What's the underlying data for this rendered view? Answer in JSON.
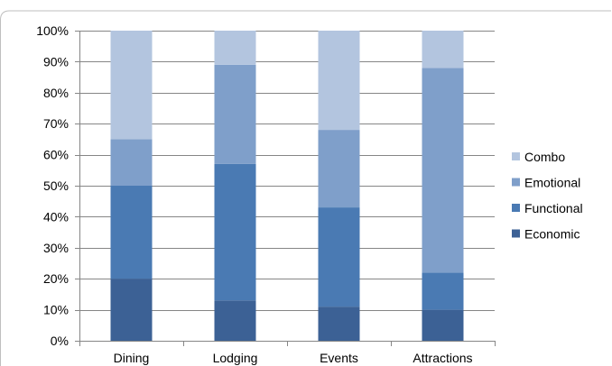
{
  "chart_data": {
    "type": "bar",
    "stacked": true,
    "categories": [
      "Dining",
      "Lodging",
      "Events",
      "Attractions"
    ],
    "series": [
      {
        "name": "Economic",
        "values": [
          20,
          13,
          11,
          10
        ],
        "color": "#3c6195"
      },
      {
        "name": "Functional",
        "values": [
          30,
          44,
          32,
          12
        ],
        "color": "#4a7ab3"
      },
      {
        "name": "Emotional",
        "values": [
          15,
          32,
          25,
          66
        ],
        "color": "#7f9fca"
      },
      {
        "name": "Combo",
        "values": [
          35,
          11,
          32,
          12
        ],
        "color": "#b3c5df"
      }
    ],
    "y_ticks": [
      "0%",
      "10%",
      "20%",
      "30%",
      "40%",
      "50%",
      "60%",
      "70%",
      "80%",
      "90%",
      "100%"
    ],
    "ylim": [
      0,
      100
    ],
    "grid": true,
    "legend_position": "right",
    "legend_order": [
      "Combo",
      "Emotional",
      "Functional",
      "Economic"
    ]
  }
}
